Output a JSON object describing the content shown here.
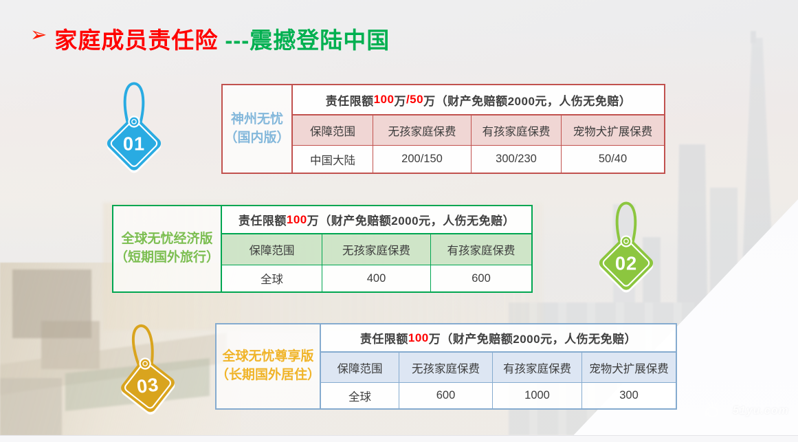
{
  "slide": {
    "title": {
      "bullet": "➢",
      "bullet_color": "#FF1A00",
      "segments": [
        {
          "text": "家庭成员责任险",
          "color": "#FF0000"
        },
        {
          "text": "---震撼登陆中国",
          "color": "#00B050"
        }
      ]
    },
    "highlight_color": "#FF0000",
    "watermark": "51yu.com"
  },
  "tables": [
    {
      "product_lines": [
        "神州无忧",
        "（国内版）"
      ],
      "tag": {
        "number": "01",
        "colors": {
          "tag": "#29ABE2"
        }
      },
      "colors": {
        "border": "#C1514E",
        "header_bg": "rgba(239,210,208,0.92)",
        "label": "#84B8DB"
      },
      "limit": [
        {
          "text": "责任限额",
          "highlight": false
        },
        {
          "text": "100",
          "highlight": true
        },
        {
          "text": "万",
          "highlight": false
        },
        {
          "text": "/50",
          "highlight": true
        },
        {
          "text": "万（财产免赔额2000元，人伤无免赔）",
          "highlight": false
        }
      ],
      "columns": [
        "保障范围",
        "无孩家庭保费",
        "有孩家庭保费",
        "宠物犬扩展保费"
      ],
      "values": [
        "中国大陆",
        "200/150",
        "300/230",
        "50/40"
      ]
    },
    {
      "product_lines": [
        "全球无忧经济版",
        "（短期国外旅行）"
      ],
      "tag": {
        "number": "02",
        "colors": {
          "tag": "#8CC63F"
        }
      },
      "colors": {
        "border": "#00A651",
        "header_bg": "rgba(203,227,196,0.92)",
        "label": "#7CBE51"
      },
      "limit": [
        {
          "text": "责任限额",
          "highlight": false
        },
        {
          "text": "100",
          "highlight": true
        },
        {
          "text": "万（财产免赔额2000元，人伤无免赔）",
          "highlight": false
        }
      ],
      "columns": [
        "保障范围",
        "无孩家庭保费",
        "有孩家庭保费"
      ],
      "values": [
        "全球",
        "400",
        "600"
      ]
    },
    {
      "product_lines": [
        "全球无忧尊享版",
        "（长期国外居住）"
      ],
      "tag": {
        "number": "03",
        "colors": {
          "tag": "#D9A41E"
        }
      },
      "colors": {
        "border": "#85ABCF",
        "header_bg": "rgba(219,229,242,0.95)",
        "label": "#F0B429"
      },
      "limit": [
        {
          "text": "责任限额",
          "highlight": false
        },
        {
          "text": "100",
          "highlight": true
        },
        {
          "text": "万（财产免赔额2000元，人伤无免赔）",
          "highlight": false
        }
      ],
      "columns": [
        "保障范围",
        "无孩家庭保费",
        "有孩家庭保费",
        "宠物犬扩展保费"
      ],
      "values": [
        "全球",
        "600",
        "1000",
        "300"
      ]
    }
  ]
}
